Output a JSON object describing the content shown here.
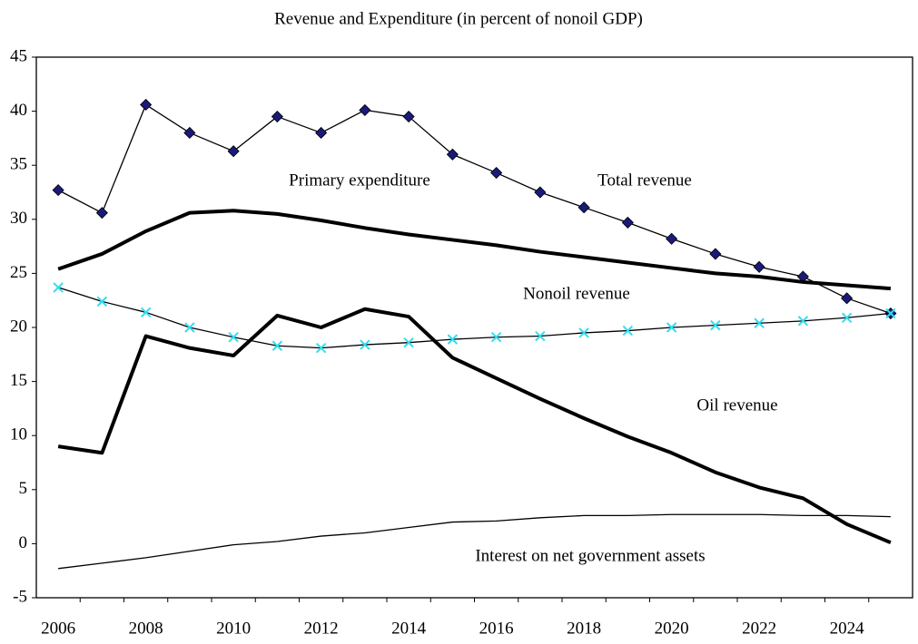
{
  "chart_data": {
    "type": "line",
    "title": "Revenue and Expenditure (in percent of nonoil GDP)",
    "categories": [
      "2006",
      null,
      "2008",
      null,
      "2010",
      null,
      "2012",
      null,
      "2014",
      null,
      "2016",
      null,
      "2018",
      null,
      "2020",
      null,
      "2022",
      null,
      "2024",
      null
    ],
    "series": [
      {
        "name": "Total revenue",
        "color": "#000000",
        "marker": "diamond",
        "marker_color": "#1a1a7a",
        "values": [
          32.7,
          30.6,
          40.6,
          38.0,
          36.3,
          39.5,
          38.0,
          40.1,
          39.5,
          36.0,
          34.3,
          32.5,
          31.1,
          29.7,
          28.2,
          26.8,
          25.6,
          24.7,
          22.7,
          21.3
        ]
      },
      {
        "name": "Primary expenditure",
        "color": "#000000",
        "values": [
          25.4,
          26.8,
          28.9,
          30.6,
          30.8,
          30.5,
          29.9,
          29.2,
          28.6,
          28.1,
          27.6,
          27.0,
          26.5,
          26.0,
          25.5,
          25.0,
          24.7,
          24.2,
          23.9,
          23.6
        ]
      },
      {
        "name": "Nonoil revenue",
        "color": "#000000",
        "marker": "x",
        "marker_color": "#33ddee",
        "values": [
          23.7,
          22.4,
          21.4,
          20.0,
          19.1,
          18.3,
          18.1,
          18.4,
          18.6,
          18.9,
          19.1,
          19.2,
          19.5,
          19.7,
          20.0,
          20.2,
          20.4,
          20.6,
          20.9,
          21.3
        ]
      },
      {
        "name": "Oil revenue",
        "color": "#000000",
        "values": [
          9.0,
          8.4,
          19.2,
          18.1,
          17.4,
          21.1,
          20.0,
          21.7,
          21.0,
          17.2,
          15.3,
          13.4,
          11.6,
          9.9,
          8.4,
          6.6,
          5.2,
          4.2,
          1.8,
          0.1
        ]
      },
      {
        "name": "Interest on net government assets",
        "color": "#000000",
        "values": [
          -2.3,
          -1.8,
          -1.3,
          -0.7,
          -0.1,
          0.2,
          0.7,
          1.0,
          1.5,
          2.0,
          2.1,
          2.4,
          2.6,
          2.6,
          2.7,
          2.7,
          2.7,
          2.6,
          2.6,
          2.5
        ]
      }
    ],
    "ylim": [
      -5,
      45
    ],
    "yticks": [
      -5,
      0,
      5,
      10,
      15,
      20,
      25,
      30,
      35,
      40,
      45
    ]
  }
}
